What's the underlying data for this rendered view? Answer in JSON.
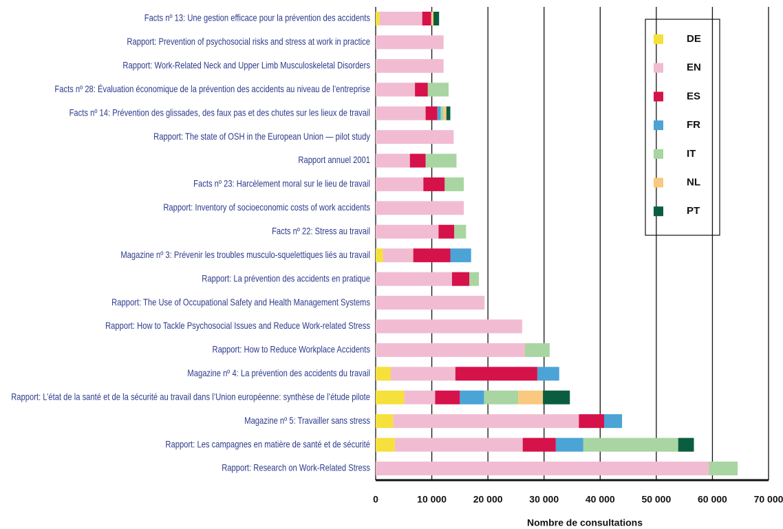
{
  "chart_data": {
    "type": "stacked-barh",
    "x_label": "Nombre de consultations",
    "categories": [
      "Facts nº 13: Une gestion efficace pour la prévention des accidents",
      "Rapport: Prevention of psychosocial risks and stress at work in practice",
      "Rapport: Work-Related Neck and Upper Limb Musculoskeletal Disorders",
      "Facts nº 28: Évaluation économique de la prévention des accidents au niveau de l’entreprise",
      "Facts nº 14: Prévention des glissades, des faux pas et des chutes sur les lieux de travail",
      "Rapport: The state of OSH in the European Union — pilot study",
      "Rapport annuel 2001",
      "Facts nº 23: Harcèlement moral sur le lieu de travail",
      "Rapport: Inventory of socioeconomic costs of work accidents",
      "Facts nº 22: Stress au travail",
      "Magazine nº 3: Prévenir les troubles musculo-squelettiques liés au travail",
      "Rapport: La prévention des accidents en pratique",
      "Rapport: The Use of Occupational Safety and Health Management Systems",
      "Rapport: How to Tackle Psychosocial Issues and Reduce Work-related Stress",
      "Rapport: How to Reduce Workplace Accidents",
      "Magazine nº 4: La prévention des accidents du travail",
      "Rapport: L’état de la santé et de la sécurité au travail dans l’Union européenne: synthèse de l’étude pilote",
      "Magazine nº 5: Travailler sans stress",
      "Rapport: Les campagnes en matière de santé et de sécurité",
      "Rapport: Research on Work-Related Stress"
    ],
    "series": [
      {
        "name": "DE",
        "color": "#f5e03c",
        "values": [
          700,
          0,
          0,
          0,
          0,
          0,
          0,
          0,
          0,
          0,
          1300,
          0,
          0,
          0,
          0,
          2700,
          5100,
          3100,
          3400,
          0
        ]
      },
      {
        "name": "EN",
        "color": "#f1bcd1",
        "values": [
          7600,
          12100,
          12100,
          7000,
          8900,
          13900,
          6100,
          8500,
          15700,
          11200,
          5400,
          13600,
          19400,
          26100,
          26600,
          11500,
          5500,
          33100,
          22800,
          59400
        ]
      },
      {
        "name": "ES",
        "color": "#d6124a",
        "values": [
          1600,
          0,
          0,
          2300,
          2100,
          0,
          2800,
          3800,
          0,
          2800,
          6600,
          3100,
          0,
          0,
          0,
          14600,
          4400,
          4500,
          5900,
          0
        ]
      },
      {
        "name": "FR",
        "color": "#4ba3d6",
        "values": [
          0,
          0,
          0,
          0,
          600,
          0,
          0,
          0,
          0,
          0,
          3700,
          0,
          0,
          0,
          0,
          3900,
          4300,
          3200,
          4900,
          0
        ]
      },
      {
        "name": "IT",
        "color": "#a8d5a2",
        "values": [
          0,
          0,
          0,
          3700,
          500,
          0,
          5500,
          3400,
          0,
          2100,
          0,
          1700,
          0,
          0,
          4400,
          0,
          6100,
          0,
          16900,
          5100
        ]
      },
      {
        "name": "NL",
        "color": "#f8c97e",
        "values": [
          400,
          0,
          0,
          0,
          500,
          0,
          0,
          0,
          0,
          0,
          0,
          0,
          0,
          0,
          0,
          0,
          4400,
          0,
          0,
          0
        ]
      },
      {
        "name": "PT",
        "color": "#0a5e3f",
        "values": [
          1000,
          0,
          0,
          0,
          700,
          0,
          0,
          0,
          0,
          0,
          0,
          0,
          0,
          0,
          0,
          0,
          4800,
          0,
          2800,
          0
        ]
      }
    ],
    "xlim": [
      0,
      70000
    ],
    "xticks": [
      0,
      {
        "value": 10000,
        "label": "10 000"
      },
      {
        "value": 20000,
        "label": "20 000"
      },
      {
        "value": 30000,
        "label": "30 000"
      },
      {
        "value": 40000,
        "label": "40 000"
      },
      {
        "value": 50000,
        "label": "50 000"
      },
      {
        "value": 60000,
        "label": "60 000"
      },
      {
        "value": 70000,
        "label": "70 000"
      }
    ],
    "grid": true,
    "legend": "upper right"
  }
}
